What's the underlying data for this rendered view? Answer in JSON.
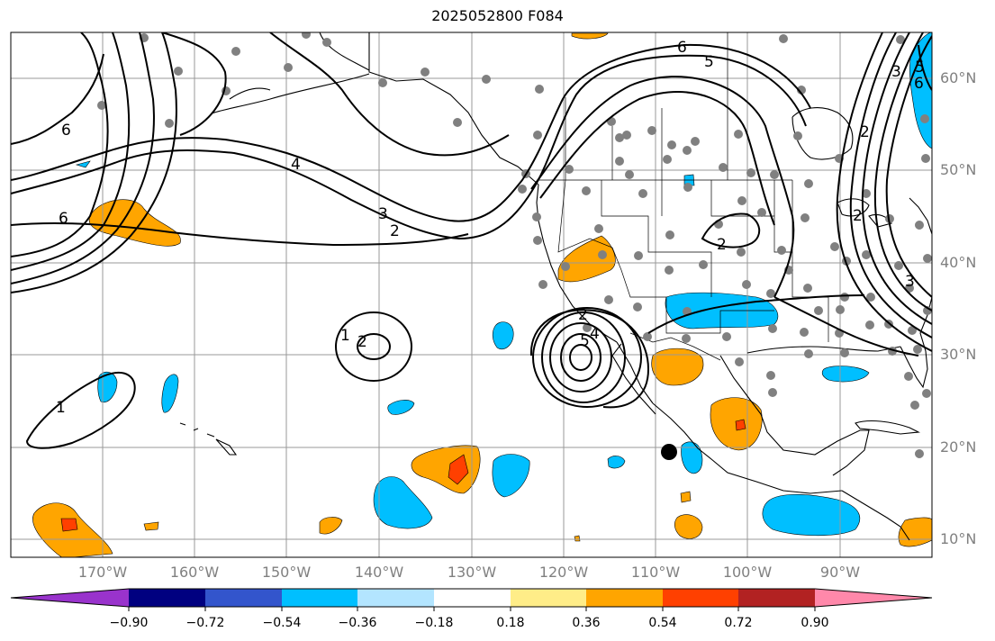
{
  "title": "2025052800 F084",
  "map": {
    "lon_labels": [
      "170°W",
      "160°W",
      "150°W",
      "140°W",
      "130°W",
      "120°W",
      "110°W",
      "100°W",
      "90°W"
    ],
    "lat_labels": [
      "60°N",
      "50°N",
      "40°N",
      "30°N",
      "20°N",
      "10°N"
    ],
    "contour_labels": [
      "6",
      "5",
      "4",
      "3",
      "2",
      "2",
      "1",
      "1",
      "2",
      "2",
      "5",
      "4",
      "6",
      "2",
      "6",
      "5",
      "3",
      "2",
      "3",
      "6"
    ]
  },
  "colorbar": {
    "colors": [
      "#9933cc",
      "#000080",
      "#3355cc",
      "#00bfff",
      "#b3e5ff",
      "#ffffff",
      "#ffed88",
      "#ffa500",
      "#ff4000",
      "#b22222",
      "#ff88aa"
    ],
    "ticks": [
      "−0.90",
      "−0.72",
      "−0.54",
      "−0.36",
      "−0.18",
      "0.18",
      "0.36",
      "0.54",
      "0.72",
      "0.90"
    ]
  },
  "fill_colors": {
    "neg_light": "#00bfff",
    "pos_orange": "#ffa500",
    "pos_red": "#ff4000"
  }
}
